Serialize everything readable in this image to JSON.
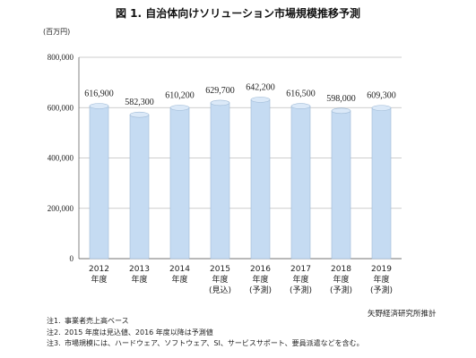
{
  "chart_data": {
    "type": "bar",
    "title": "図 1. 自治体向けソリューション市場規模推移予測",
    "unit_label": "(百万円)",
    "categories": [
      [
        "2012",
        "年度",
        ""
      ],
      [
        "2013",
        "年度",
        ""
      ],
      [
        "2014",
        "年度",
        ""
      ],
      [
        "2015",
        "年度",
        "(見込)"
      ],
      [
        "2016",
        "年度",
        "(予測)"
      ],
      [
        "2017",
        "年度",
        "(予測)"
      ],
      [
        "2018",
        "年度",
        "(予測)"
      ],
      [
        "2019",
        "年度",
        "(予測)"
      ]
    ],
    "values": [
      616900,
      582300,
      610200,
      629700,
      642200,
      616500,
      598000,
      609300
    ],
    "value_labels": [
      "616,900",
      "582,300",
      "610,200",
      "629,700",
      "642,200",
      "616,500",
      "598,000",
      "609,300"
    ],
    "ylim": [
      0,
      800000
    ],
    "yticks": [
      0,
      200000,
      400000,
      600000,
      800000
    ],
    "ytick_labels": [
      "0",
      "200,000",
      "400,000",
      "600,000",
      "800,000"
    ],
    "grid": true,
    "bar_color": "#c5dbf2",
    "bar_edge_color": "#9fbad6"
  },
  "source": "矢野経済研究所推計",
  "notes": [
    {
      "mark": "注1.",
      "text": "事業者売上高ベース"
    },
    {
      "mark": "注2.",
      "text": "2015 年度は見込値、2016 年度以降は予測値"
    },
    {
      "mark": "注3.",
      "text": "市場規模には、ハードウェア、ソフトウェア、SI、サービスサポート、要員派遣などを含む。"
    }
  ]
}
